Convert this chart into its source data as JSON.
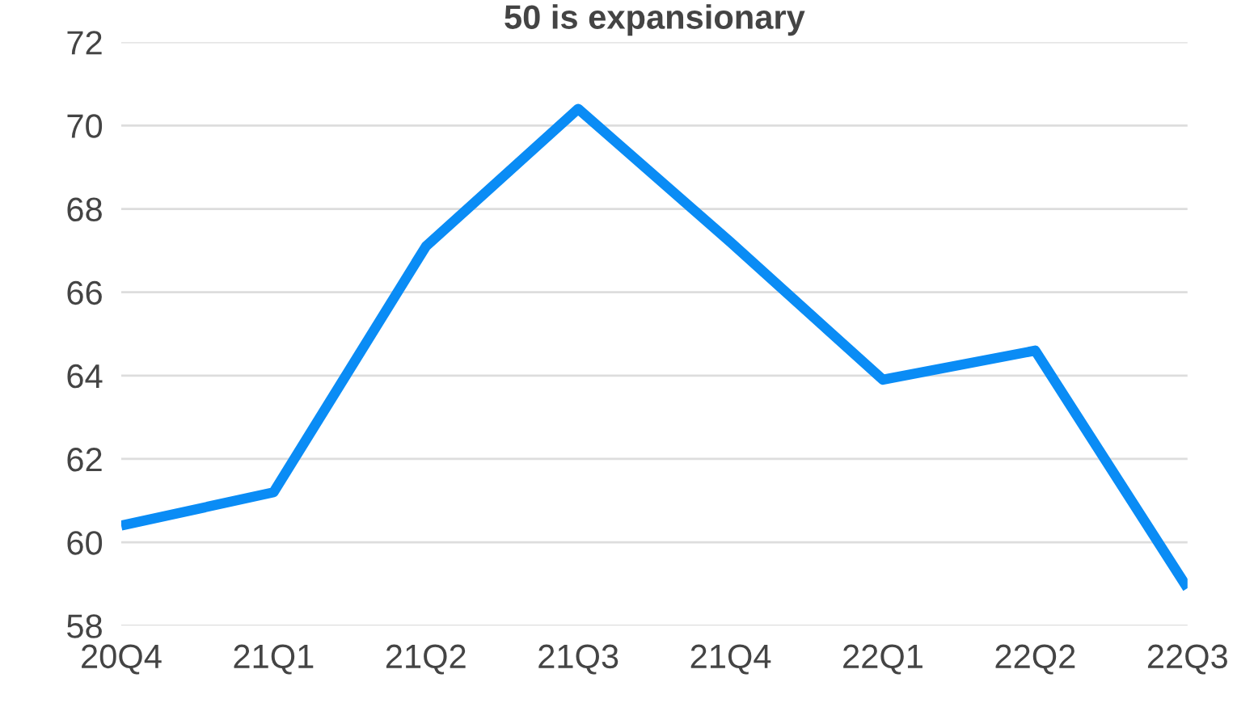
{
  "chart_data": {
    "type": "line",
    "title": "50 is expansionary",
    "categories": [
      "20Q4",
      "21Q1",
      "21Q2",
      "21Q3",
      "21Q4",
      "22Q1",
      "22Q2",
      "22Q3"
    ],
    "series": [
      {
        "color": "#0a8cf5",
        "values": [
          60.4,
          61.2,
          67.1,
          70.4,
          67.2,
          63.9,
          64.6,
          58.9
        ]
      }
    ],
    "ylim": [
      58,
      72
    ],
    "yticks": [
      58,
      60,
      62,
      64,
      66,
      68,
      70,
      72
    ],
    "grid": "y",
    "legend": false
  }
}
